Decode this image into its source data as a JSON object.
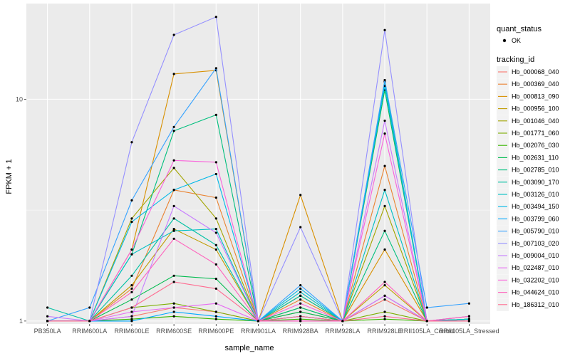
{
  "chart_data": {
    "type": "line",
    "xlabel": "sample_name",
    "ylabel": "FPKM + 1",
    "y_scale": "log10",
    "ylim": [
      0.97,
      27
    ],
    "y_ticks": [
      {
        "value": 1,
        "label": "1"
      },
      {
        "value": 10,
        "label": "10"
      }
    ],
    "categories": [
      "PB350LA",
      "RRIM600LA",
      "RRIM600LE",
      "RRIM600SE",
      "RRIM600PE",
      "RRIM901LA",
      "RRIM928BA",
      "RRIM928LA",
      "RRIM928LE",
      "RRII105LA_Control",
      "RRII105LA_Stressed"
    ],
    "panel_background": "#ebebeb",
    "grid": true,
    "legend_position": "right",
    "legend": {
      "shape_title": "quant_status",
      "shape_entry": "OK",
      "color_title": "tracking_id"
    },
    "series": [
      {
        "name": "Hb_000068_040",
        "color": "#F8766D",
        "values": [
          1.0,
          1.0,
          1.05,
          1.15,
          1.1,
          1.0,
          1.1,
          1.0,
          1.25,
          1.0,
          1.02
        ]
      },
      {
        "name": "Hb_000369_040",
        "color": "#EA8331",
        "values": [
          1.0,
          1.0,
          1.4,
          3.9,
          3.6,
          1.0,
          1.25,
          1.0,
          5.0,
          1.0,
          1.02
        ]
      },
      {
        "name": "Hb_000813_090",
        "color": "#D89000",
        "values": [
          1.0,
          1.0,
          2.1,
          13.0,
          13.5,
          1.0,
          3.7,
          1.0,
          2.1,
          1.0,
          1.02
        ]
      },
      {
        "name": "Hb_000956_100",
        "color": "#C09B00",
        "values": [
          1.0,
          1.0,
          1.45,
          2.6,
          2.1,
          1.0,
          1.3,
          1.0,
          1.45,
          1.0,
          1.0
        ]
      },
      {
        "name": "Hb_001046_040",
        "color": "#A3A500",
        "values": [
          1.0,
          1.0,
          2.9,
          4.9,
          2.9,
          1.0,
          1.15,
          1.0,
          3.3,
          1.0,
          1.0
        ]
      },
      {
        "name": "Hb_001771_060",
        "color": "#7CAE00",
        "values": [
          1.0,
          1.0,
          1.15,
          1.2,
          1.1,
          1.0,
          1.05,
          1.0,
          1.1,
          1.0,
          1.0
        ]
      },
      {
        "name": "Hb_002076_030",
        "color": "#39B600",
        "values": [
          1.0,
          1.0,
          1.02,
          1.05,
          1.02,
          1.0,
          1.02,
          1.0,
          1.02,
          1.0,
          1.0
        ]
      },
      {
        "name": "Hb_002631_110",
        "color": "#00BB4E",
        "values": [
          1.0,
          1.0,
          1.25,
          1.6,
          1.55,
          1.0,
          1.1,
          1.0,
          11.0,
          1.0,
          1.02
        ]
      },
      {
        "name": "Hb_002785_010",
        "color": "#00BF7D",
        "values": [
          1.0,
          1.0,
          2.0,
          7.2,
          8.5,
          1.0,
          1.15,
          1.0,
          2.55,
          1.0,
          1.02
        ]
      },
      {
        "name": "Hb_003090_170",
        "color": "#00C1A3",
        "values": [
          1.15,
          1.0,
          1.6,
          2.9,
          2.2,
          1.0,
          1.3,
          1.0,
          12.0,
          1.0,
          1.02
        ]
      },
      {
        "name": "Hb_003126_010",
        "color": "#00BFC4",
        "values": [
          1.0,
          1.0,
          2.0,
          2.55,
          2.6,
          1.0,
          1.35,
          1.0,
          3.9,
          1.0,
          1.02
        ]
      },
      {
        "name": "Hb_003494_150",
        "color": "#00B8E7",
        "values": [
          1.0,
          1.0,
          2.8,
          3.9,
          4.6,
          1.0,
          1.4,
          1.0,
          11.5,
          1.0,
          1.05
        ]
      },
      {
        "name": "Hb_003799_060",
        "color": "#00A9FF",
        "values": [
          1.0,
          1.0,
          1.0,
          1.1,
          1.05,
          1.0,
          1.05,
          1.0,
          1.3,
          1.0,
          1.0
        ]
      },
      {
        "name": "Hb_005790_010",
        "color": "#35A2FF",
        "values": [
          1.0,
          1.15,
          3.5,
          7.5,
          13.8,
          1.0,
          1.45,
          1.0,
          12.2,
          1.15,
          1.2
        ]
      },
      {
        "name": "Hb_007103_020",
        "color": "#9590FF",
        "values": [
          1.0,
          1.0,
          6.4,
          19.5,
          23.5,
          1.0,
          2.65,
          1.0,
          20.5,
          1.0,
          1.0
        ]
      },
      {
        "name": "Hb_009004_010",
        "color": "#C77CFF",
        "values": [
          1.05,
          1.0,
          1.05,
          3.3,
          2.5,
          1.0,
          1.0,
          1.0,
          8.0,
          1.0,
          1.0
        ]
      },
      {
        "name": "Hb_022487_010",
        "color": "#E76BF3",
        "values": [
          1.0,
          1.0,
          1.1,
          1.15,
          1.2,
          1.0,
          1.0,
          1.0,
          1.3,
          1.0,
          1.0
        ]
      },
      {
        "name": "Hb_032202_010",
        "color": "#FA62DB",
        "values": [
          1.0,
          1.0,
          2.1,
          5.3,
          5.2,
          1.0,
          1.2,
          1.0,
          7.0,
          1.0,
          1.05
        ]
      },
      {
        "name": "Hb_044624_010",
        "color": "#FF62BC",
        "values": [
          1.0,
          1.0,
          1.35,
          2.35,
          1.8,
          1.0,
          1.0,
          1.0,
          1.5,
          1.0,
          1.05
        ]
      },
      {
        "name": "Hb_186312_010",
        "color": "#FF6C91",
        "values": [
          1.0,
          1.0,
          1.15,
          1.5,
          1.4,
          1.0,
          1.05,
          1.0,
          1.05,
          1.0,
          1.0
        ]
      }
    ]
  }
}
